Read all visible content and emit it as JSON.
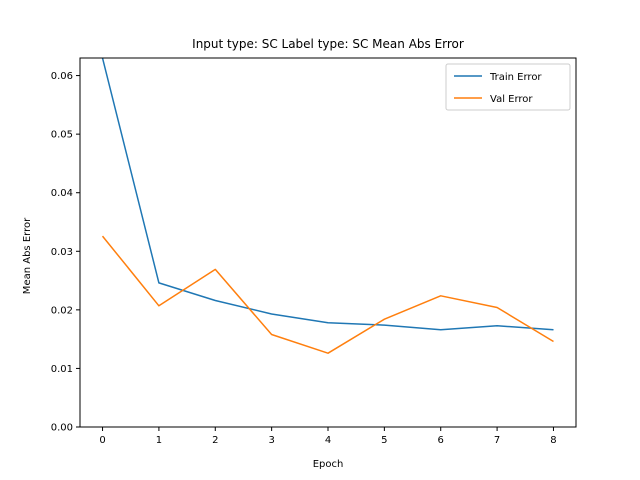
{
  "chart_data": {
    "type": "line",
    "title": "Input type: SC Label type: SC    Mean Abs Error",
    "xlabel": "Epoch",
    "ylabel": "Mean Abs Error",
    "x": [
      0,
      1,
      2,
      3,
      4,
      5,
      6,
      7,
      8
    ],
    "xlim": [
      -0.4,
      8.4
    ],
    "ylim": [
      0.0,
      0.063
    ],
    "xticks": [
      "0",
      "1",
      "2",
      "3",
      "4",
      "5",
      "6",
      "7",
      "8"
    ],
    "yticks": [
      "0.00",
      "0.01",
      "0.02",
      "0.03",
      "0.04",
      "0.05",
      "0.06"
    ],
    "grid": false,
    "legend_position": "top-right",
    "series": [
      {
        "name": "Train Error",
        "color": "#1f77b4",
        "values": [
          0.063,
          0.0246,
          0.0216,
          0.0193,
          0.0178,
          0.0174,
          0.0166,
          0.0173,
          0.0166
        ]
      },
      {
        "name": "Val Error",
        "color": "#ff7f0e",
        "values": [
          0.0326,
          0.0207,
          0.0269,
          0.0158,
          0.0126,
          0.0184,
          0.0224,
          0.0204,
          0.0146
        ]
      }
    ]
  }
}
